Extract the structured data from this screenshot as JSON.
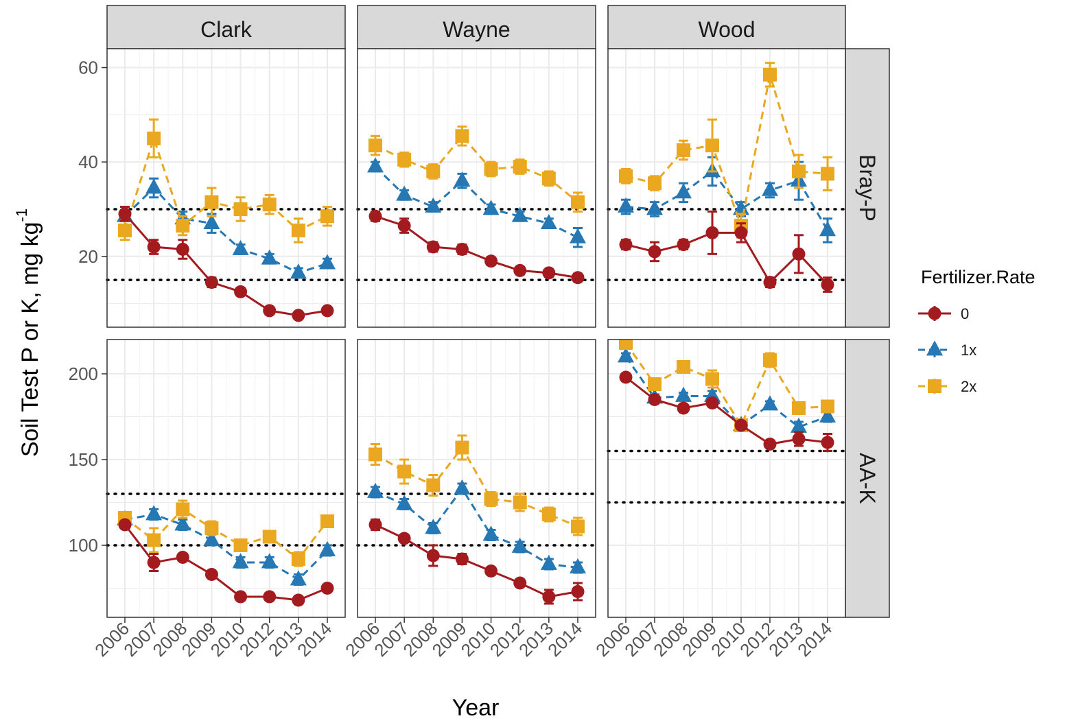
{
  "chart_data": {
    "type": "line",
    "facet_columns": [
      "Clark",
      "Wayne",
      "Wood"
    ],
    "facet_rows": [
      "Bray-P",
      "AA-K"
    ],
    "x": [
      "2006",
      "2007",
      "2008",
      "2009",
      "2010",
      "2012",
      "2013",
      "2014"
    ],
    "xlabel": "Year",
    "ylabel": "Soil Test P or K, mg kg",
    "ylabel_superscript": "-1",
    "y_ticks": {
      "Bray-P": [
        20,
        40,
        60
      ],
      "AA-K": [
        100,
        150,
        200
      ]
    },
    "ylim": {
      "Bray-P": [
        5,
        64
      ],
      "AA-K": [
        58,
        220
      ]
    },
    "legend": {
      "title": "Fertilizer.Rate",
      "position": "right"
    },
    "grid": true,
    "series": [
      {
        "name": "0",
        "color": "#a31a1f",
        "marker": "circle",
        "linestyle": "solid"
      },
      {
        "name": "1x",
        "color": "#2578b4",
        "marker": "triangle",
        "linestyle": "dashed"
      },
      {
        "name": "2x",
        "color": "#e9a820",
        "marker": "square",
        "linestyle": "dashed"
      }
    ],
    "reference_lines": {
      "Bray-P": [
        30,
        15
      ],
      "AA-K": {
        "Clark": [
          130,
          100
        ],
        "Wayne": [
          130,
          100
        ],
        "Wood": [
          155,
          125
        ]
      }
    },
    "panels": {
      "Bray-P": {
        "Clark": {
          "0": {
            "values": [
              29,
              22,
              21.5,
              14.5,
              12.5,
              8.5,
              7.5,
              8.5
            ],
            "err": [
              1.5,
              1.5,
              2,
              1,
              0.8,
              0.8,
              0.6,
              0.6
            ]
          },
          "1x": {
            "values": [
              28.5,
              34.5,
              28,
              27,
              21.5,
              19.5,
              16.5,
              18.5
            ],
            "err": [
              1,
              2,
              1.5,
              2,
              1,
              1,
              1,
              1
            ]
          },
          "2x": {
            "values": [
              25.5,
              45,
              26.5,
              31.5,
              30,
              31,
              25.5,
              28.5
            ],
            "err": [
              2,
              4,
              2,
              3,
              2.5,
              2,
              2.5,
              2
            ]
          }
        },
        "Wayne": {
          "0": {
            "values": [
              28.5,
              26.5,
              22,
              21.5,
              19,
              17,
              16.5,
              15.5
            ],
            "err": [
              1,
              1.5,
              1,
              1,
              0.8,
              0.8,
              0.8,
              0.8
            ]
          },
          "1x": {
            "values": [
              39,
              33,
              30.5,
              36,
              30,
              28.5,
              27,
              24
            ],
            "err": [
              1,
              1,
              1,
              1.5,
              1,
              1,
              1,
              2
            ]
          },
          "2x": {
            "values": [
              43.5,
              40.5,
              38,
              45.5,
              38.5,
              39,
              36.5,
              31.5
            ],
            "err": [
              2,
              1.5,
              1.5,
              2,
              1.5,
              1.5,
              1.5,
              2
            ]
          }
        },
        "Wood": {
          "0": {
            "values": [
              22.5,
              21,
              22.5,
              25,
              25,
              14.5,
              20.5,
              14
            ],
            "err": [
              1,
              2,
              1,
              4.5,
              2,
              1,
              4,
              1.5
            ]
          },
          "1x": {
            "values": [
              30.5,
              30,
              33.5,
              38,
              30,
              34,
              36,
              25.5
            ],
            "err": [
              1.5,
              1.5,
              2,
              3,
              1.5,
              1.5,
              4,
              2.5
            ]
          },
          "2x": {
            "values": [
              37,
              35.5,
              42.5,
              43.5,
              26.5,
              58.5,
              38,
              37.5
            ],
            "err": [
              1.5,
              1.5,
              2,
              5.5,
              2.5,
              2.5,
              3.5,
              3.5
            ]
          }
        }
      },
      "AA-K": {
        "Clark": {
          "0": {
            "values": [
              112,
              90,
              93,
              83,
              70,
              70,
              68,
              75
            ],
            "err": [
              2,
              5,
              2,
              2,
              2,
              2,
              2,
              2
            ]
          },
          "1x": {
            "values": [
              115,
              118,
              112,
              103,
              90,
              90,
              80,
              97
            ],
            "err": [
              2,
              3,
              3,
              3,
              3,
              3,
              3,
              3
            ]
          },
          "2x": {
            "values": [
              116,
              103,
              121,
              110,
              100,
              105,
              92,
              114
            ],
            "err": [
              3,
              7,
              5,
              4,
              3,
              3,
              4,
              3
            ]
          }
        },
        "Wayne": {
          "0": {
            "values": [
              112,
              104,
              94,
              92,
              85,
              78,
              70,
              73
            ],
            "err": [
              3,
              2,
              6,
              3,
              2,
              2,
              4,
              5
            ]
          },
          "1x": {
            "values": [
              131,
              124,
              110,
              133,
              106,
              99,
              89,
              87
            ],
            "err": [
              3,
              3,
              3,
              3,
              3,
              3,
              3,
              3
            ]
          },
          "2x": {
            "values": [
              153,
              143,
              135,
              157,
              127,
              125,
              118,
              111
            ],
            "err": [
              6,
              7,
              6,
              7,
              4,
              5,
              4,
              5
            ]
          }
        },
        "Wood": {
          "0": {
            "values": [
              198,
              185,
              180,
              183,
              170,
              159,
              162,
              160
            ],
            "err": [
              2,
              2,
              2,
              2,
              2,
              2,
              4,
              5
            ]
          },
          "1x": {
            "values": [
              210,
              186,
              187,
              187,
              170,
              182,
              169,
              175
            ],
            "err": [
              2,
              2,
              2,
              3,
              2,
              2,
              3,
              3
            ]
          },
          "2x": {
            "values": [
              218,
              194,
              204,
              197,
              170,
              208,
              180,
              181
            ],
            "err": [
              2,
              3,
              3,
              5,
              2,
              4,
              3,
              3
            ]
          }
        }
      }
    }
  }
}
